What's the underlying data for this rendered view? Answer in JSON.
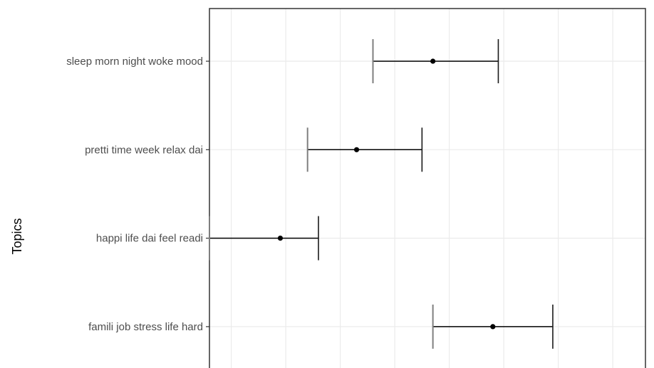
{
  "chart_data": {
    "type": "errorbar",
    "ylabel": "Topics",
    "xlabel": "",
    "title": "",
    "categories": [
      "famili job stress life hard",
      "happi life dai feel readi",
      "pretti time week relax dai",
      "sleep morn night woke mood"
    ],
    "series": [
      {
        "estimates": [
          0.52,
          0.13,
          0.27,
          0.41
        ],
        "lower": [
          0.41,
          0.0,
          0.18,
          0.3
        ],
        "upper": [
          0.63,
          0.2,
          0.39,
          0.53
        ]
      }
    ],
    "xlim": [
      0.0,
      0.8
    ],
    "x_gridlines": [
      0.04,
      0.14,
      0.24,
      0.34,
      0.44,
      0.54,
      0.64,
      0.74
    ],
    "x_tick_labels_visible": false,
    "grid": true,
    "legend": "none"
  }
}
